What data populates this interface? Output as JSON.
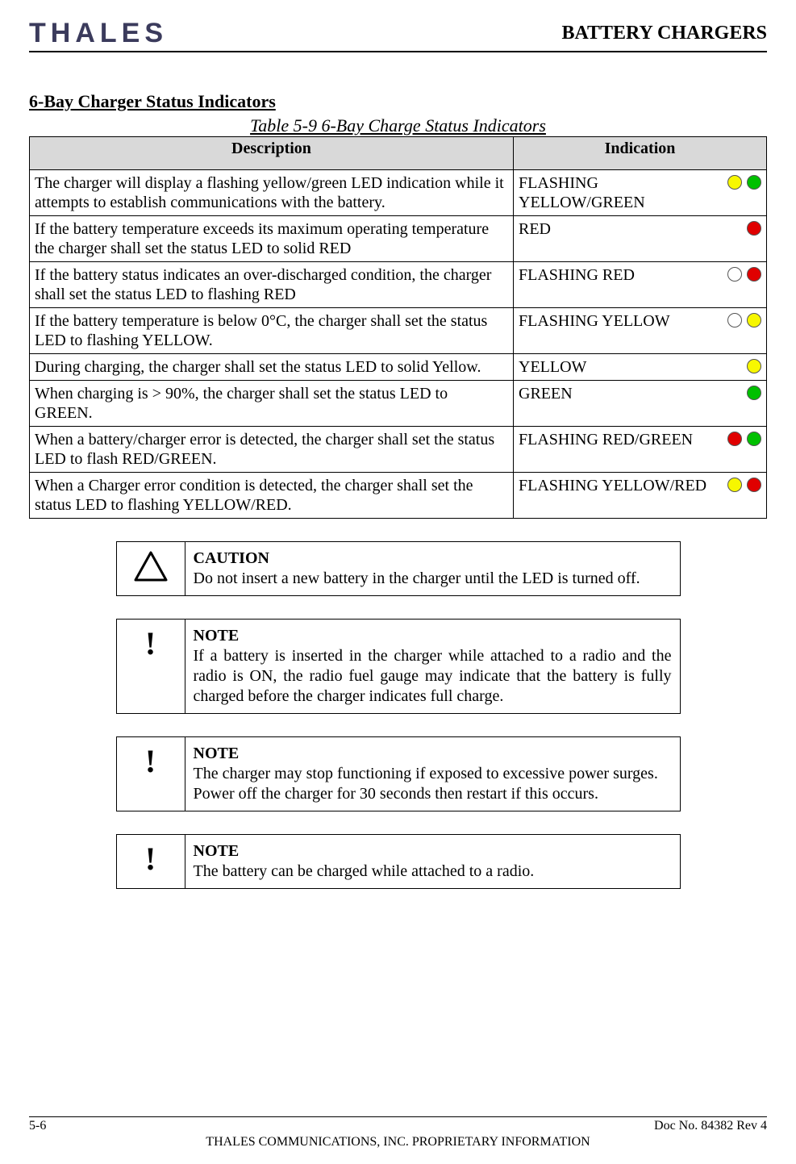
{
  "header": {
    "logo_text": "THALES",
    "logo_color": "#3b3b5c",
    "right_text": "BATTERY CHARGERS"
  },
  "section_title": "6-Bay Charger Status Indicators",
  "table_caption": "Table 5-9 6-Bay Charge Status Indicators",
  "table": {
    "headers": {
      "description": "Description",
      "indication": "Indication"
    },
    "header_bg": "#d9d9d9",
    "rows": [
      {
        "desc": "The charger will display a flashing yellow/green LED indication while it attempts to establish communications with the battery.",
        "ind_text": "FLASHING YELLOW/GREEN",
        "leds": [
          "#f7f700",
          "#00c000"
        ]
      },
      {
        "desc": "If the battery temperature exceeds its maximum operating temperature the charger shall set the status LED to solid RED",
        "ind_text": "RED",
        "leds": [
          "#e00000"
        ]
      },
      {
        "desc": "If the battery status indicates an over-discharged condition,  the charger shall set the status LED to flashing RED",
        "ind_text": "FLASHING RED",
        "leds": [
          "#ffffff",
          "#e00000"
        ]
      },
      {
        "desc": "If the battery temperature is below 0°C, the charger shall set the status LED to flashing YELLOW.",
        "ind_text": "FLASHING YELLOW",
        "leds": [
          "#ffffff",
          "#f7f700"
        ]
      },
      {
        "desc": "During charging, the charger shall set the status LED to solid Yellow.",
        "ind_text": "YELLOW",
        "leds": [
          "#f7f700"
        ]
      },
      {
        "desc": "When charging is > 90%, the charger shall set the status LED to GREEN.",
        "ind_text": "GREEN",
        "leds": [
          "#00c000"
        ]
      },
      {
        "desc": "When a battery/charger error is detected, the charger shall set the status LED to flash RED/GREEN.",
        "ind_text": "FLASHING RED/GREEN",
        "leds": [
          "#e00000",
          "#00c000"
        ]
      },
      {
        "desc": "When a Charger error condition is detected, the charger shall set the status LED to flashing YELLOW/RED.",
        "ind_text": "FLASHING YELLOW/RED",
        "leds": [
          "#f7f700",
          "#e00000"
        ]
      }
    ]
  },
  "callouts": [
    {
      "icon": "triangle",
      "title": "CAUTION",
      "body": "Do not insert a new battery in the charger until the LED is turned off.",
      "justify": false
    },
    {
      "icon": "bang",
      "title": "NOTE",
      "body": "If a battery is inserted in the charger while attached to a radio and the radio is ON, the radio fuel gauge may indicate that the battery is fully charged before the charger indicates full charge.",
      "justify": true
    },
    {
      "icon": "bang",
      "title": "NOTE",
      "body": "The charger may stop functioning if exposed to excessive power surges. Power off the charger for 30 seconds then restart if this occurs.",
      "justify": false
    },
    {
      "icon": "bang",
      "title": "NOTE",
      "body": "The battery can be charged while attached to a radio.",
      "justify": false
    }
  ],
  "footer": {
    "left": "5-6",
    "right": "Doc No. 84382 Rev 4",
    "center": "THALES COMMUNICATIONS, INC. PROPRIETARY INFORMATION"
  }
}
